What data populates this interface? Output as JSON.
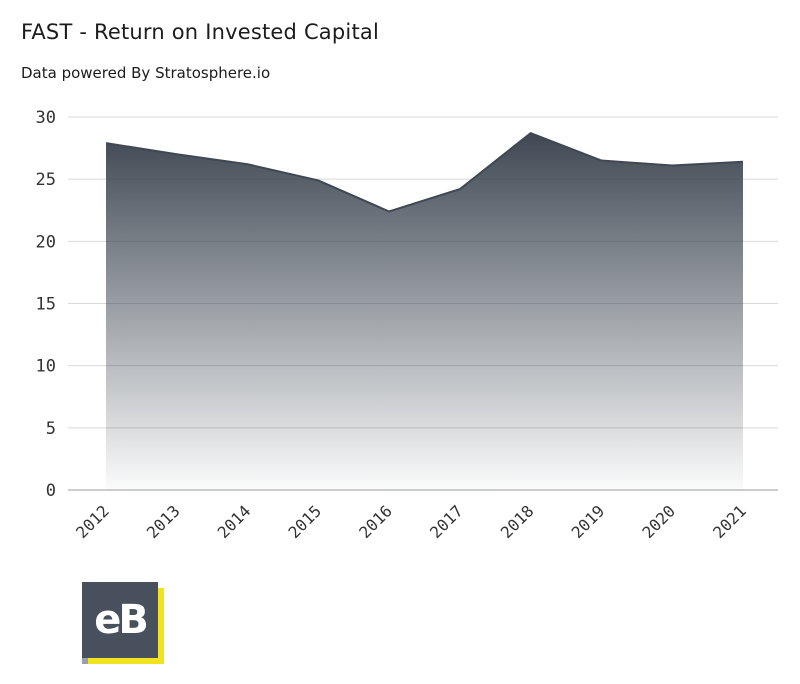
{
  "header": {
    "title": "FAST - Return on Invested Capital",
    "subtitle": "Data powered By Stratosphere.io"
  },
  "logo": {
    "text": "eB"
  },
  "colors": {
    "line": "#3f4853",
    "grid": "#d9d9d9",
    "axis": "#bdbdbd",
    "logo_bg": "#47505c",
    "logo_accent": "#f2e320"
  },
  "chart_data": {
    "type": "area",
    "title": "FAST - Return on Invested Capital",
    "xlabel": "",
    "ylabel": "",
    "categories": [
      "2012",
      "2013",
      "2014",
      "2015",
      "2016",
      "2017",
      "2018",
      "2019",
      "2020",
      "2021"
    ],
    "values": [
      27.9,
      27.0,
      26.2,
      24.9,
      22.4,
      24.2,
      28.7,
      26.5,
      26.1,
      26.4
    ],
    "ylim": [
      0,
      30
    ],
    "yticks": [
      0,
      5,
      10,
      15,
      20,
      25,
      30
    ],
    "grid": true,
    "fill": "gradient"
  }
}
